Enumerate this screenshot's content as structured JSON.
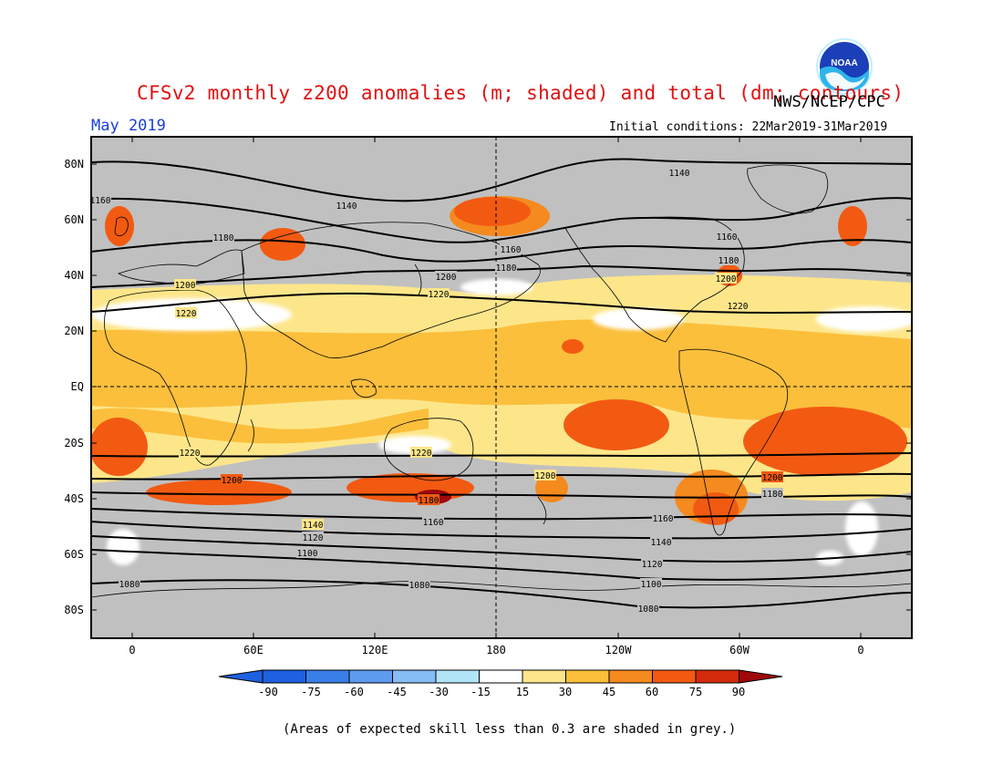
{
  "header": {
    "title": "CFSv2 monthly z200 anomalies (m; shaded) and total (dm; contours)",
    "agency": "NWS/NCEP/CPC",
    "month": "May 2019",
    "initial_conditions": "Initial conditions: 22Mar2019-31Mar2019",
    "logo_text": "NOAA"
  },
  "map": {
    "lat_labels": [
      "80N",
      "60N",
      "40N",
      "20N",
      "EQ",
      "20S",
      "40S",
      "60S",
      "80S"
    ],
    "lon_labels": [
      "0",
      "60E",
      "120E",
      "180",
      "120W",
      "60W",
      "0"
    ],
    "contour_labels": [
      "1140",
      "1140",
      "1160",
      "1160",
      "1180",
      "1160",
      "1180",
      "1180",
      "1200",
      "1200",
      "1200",
      "1220",
      "1220",
      "1220",
      "1220",
      "1220",
      "1200",
      "1200",
      "1200",
      "1180",
      "1180",
      "1160",
      "1160",
      "1140",
      "1140",
      "1120",
      "1120",
      "1100",
      "1100",
      "1080",
      "1080",
      "1080"
    ],
    "colors": {
      "grey_low_skill": "#c0c0c0",
      "white": "#ffffff",
      "pale_yellow": "#fde68a",
      "light_orange": "#fbbf3c",
      "orange": "#f58a1f",
      "orange_red": "#f25a12",
      "red": "#d42b0c",
      "dark_red": "#a0080a"
    }
  },
  "colorbar": {
    "labels": [
      "-90",
      "-75",
      "-60",
      "-45",
      "-30",
      "-15",
      "15",
      "30",
      "45",
      "60",
      "75",
      "90"
    ],
    "colors": [
      "#1e60e0",
      "#3a7ee8",
      "#5d9bef",
      "#86bdf5",
      "#b2e4f7",
      "#ffffff",
      "#fde68a",
      "#fbbf3c",
      "#f58a1f",
      "#f25a12",
      "#d42b0c",
      "#a0080a"
    ]
  },
  "footnote": "(Areas of expected skill less than 0.3 are shaded in grey.)"
}
